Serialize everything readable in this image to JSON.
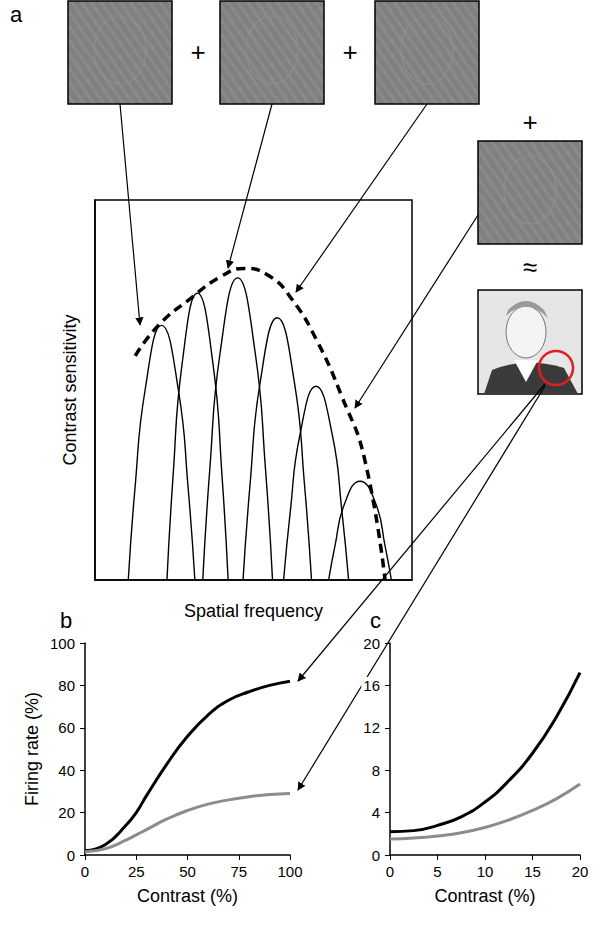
{
  "chart_data": [
    {
      "panel": "a",
      "type": "line",
      "x_label": "Spatial frequency",
      "y_label": "Contrast sensitivity",
      "tick_labels": false,
      "grid": false,
      "xlim": [
        0,
        100
      ],
      "ylim": [
        0,
        100
      ],
      "annotations": [
        "+",
        "+",
        "+",
        "≈"
      ],
      "series": [
        {
          "color": "#000000",
          "line_style": "solid",
          "x": [
            10.5,
            12.6,
            15.8,
            21,
            26.3,
            29.4,
            31.5
          ],
          "values": [
            0,
            24,
            50,
            67,
            50,
            24,
            0
          ]
        },
        {
          "color": "#000000",
          "line_style": "solid",
          "x": [
            22.7,
            24.6,
            27.5,
            32.3,
            37.2,
            40.1,
            42
          ],
          "values": [
            0,
            27,
            57,
            75.5,
            57,
            27,
            0
          ]
        },
        {
          "color": "#000000",
          "line_style": "solid",
          "x": [
            34,
            36.2,
            39.5,
            45,
            50.5,
            53.8,
            56
          ],
          "values": [
            0,
            29,
            60,
            79.5,
            60,
            29,
            0
          ]
        },
        {
          "color": "#000000",
          "line_style": "solid",
          "x": [
            46.7,
            48.9,
            52.1,
            57.5,
            62.9,
            66.1,
            68.3
          ],
          "values": [
            0,
            25,
            52,
            69,
            52,
            25,
            0
          ]
        },
        {
          "color": "#000000",
          "line_style": "solid",
          "x": [
            59.5,
            61.6,
            64.6,
            69.7,
            74.9,
            77.9,
            80
          ],
          "values": [
            0,
            18,
            38,
            51,
            38,
            18,
            0
          ]
        },
        {
          "color": "#000000",
          "line_style": "solid",
          "x": [
            73.7,
            75.7,
            78.7,
            83.6,
            88.6,
            91.5,
            93.5
          ],
          "values": [
            0,
            9,
            20,
            26,
            20,
            9,
            0
          ]
        },
        {
          "color": "#000000",
          "line_style": "dashed",
          "x": [
            12.7,
            20,
            30,
            40,
            47,
            55,
            62,
            70,
            78,
            85,
            91.5
          ],
          "values": [
            59,
            67,
            74,
            80,
            82,
            80,
            74,
            63,
            48,
            32,
            0
          ]
        }
      ]
    },
    {
      "panel": "b",
      "type": "line",
      "x_label": "Contrast (%)",
      "y_label": "Firing rate (%)",
      "grid": false,
      "xlim": [
        0,
        100
      ],
      "xticks": [
        0,
        25,
        50,
        75,
        100
      ],
      "ylim": [
        0,
        100
      ],
      "yticks": [
        0,
        20,
        40,
        60,
        80,
        100
      ],
      "x": [
        0,
        10,
        20,
        25,
        30,
        40,
        50,
        60,
        70,
        80,
        90,
        100
      ],
      "series": [
        {
          "color": "#000000",
          "line_style": "solid",
          "values": [
            2,
            5,
            14,
            20,
            28,
            43,
            56,
            66,
            73,
            77,
            80,
            82
          ]
        },
        {
          "color": "#8c8c8c",
          "line_style": "solid",
          "values": [
            1.5,
            3,
            7,
            9.5,
            12,
            17,
            21,
            24,
            26,
            27.5,
            28.5,
            29
          ]
        }
      ]
    },
    {
      "panel": "c",
      "type": "line",
      "x_label": "Contrast (%)",
      "grid": false,
      "xlim": [
        0,
        20
      ],
      "xticks": [
        0,
        5,
        10,
        15,
        20
      ],
      "ylim": [
        0,
        20
      ],
      "yticks": [
        0,
        4,
        8,
        12,
        16,
        20
      ],
      "x": [
        0,
        2.5,
        5,
        7.5,
        10,
        12.5,
        15,
        17.5,
        20
      ],
      "series": [
        {
          "color": "#000000",
          "line_style": "solid",
          "values": [
            2.2,
            2.3,
            2.8,
            3.6,
            5,
            7,
            9.6,
            13,
            17.2
          ]
        },
        {
          "color": "#8c8c8c",
          "line_style": "solid",
          "values": [
            1.5,
            1.6,
            1.8,
            2.1,
            2.6,
            3.3,
            4.2,
            5.3,
            6.7
          ]
        }
      ]
    }
  ]
}
